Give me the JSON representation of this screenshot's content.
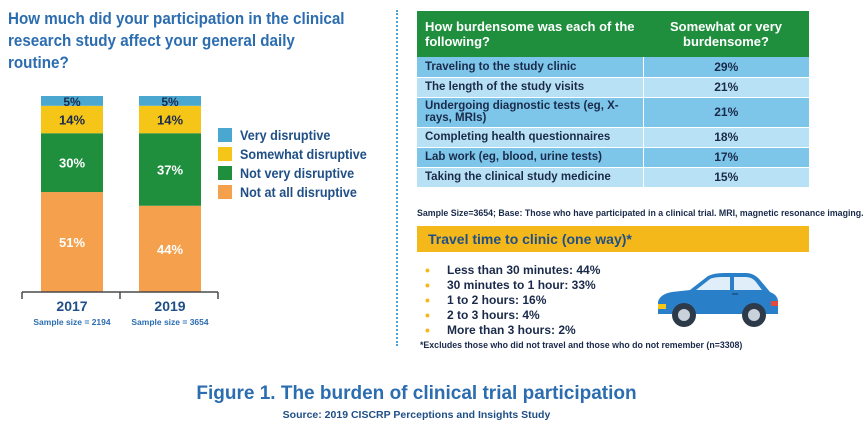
{
  "left_panel": {
    "question": "How much did your participation in the clinical research study affect your general daily routine?"
  },
  "chart_data": {
    "type": "bar",
    "stacked": true,
    "categories": [
      "2017",
      "2019"
    ],
    "sample_sizes": [
      "Sample size = 2194",
      "Sample size = 3654"
    ],
    "series": [
      {
        "name": "Not at all disruptive",
        "color": "#f4a04c",
        "values": [
          51,
          44
        ]
      },
      {
        "name": "Not very disruptive",
        "color": "#1f8f3e",
        "values": [
          30,
          37
        ]
      },
      {
        "name": "Somewhat disruptive",
        "color": "#f5c518",
        "values": [
          14,
          14
        ]
      },
      {
        "name": "Very disruptive",
        "color": "#4aa8d0",
        "values": [
          5,
          5
        ]
      }
    ],
    "value_suffix": "%",
    "ylim": [
      0,
      100
    ],
    "legend_order": [
      "Very disruptive",
      "Somewhat disruptive",
      "Not very disruptive",
      "Not at all disruptive"
    ],
    "legend_position": "right"
  },
  "burden_table": {
    "headers": [
      "How burdensome was each of the following?",
      "Somewhat or very burdensome?"
    ],
    "rows": [
      {
        "label": "Traveling to the study clinic",
        "value": "29%"
      },
      {
        "label": "The length of the study visits",
        "value": "21%"
      },
      {
        "label": "Undergoing diagnostic tests (eg, X-rays, MRIs)",
        "value": "21%"
      },
      {
        "label": "Completing health questionnaires",
        "value": "18%"
      },
      {
        "label": "Lab work (eg, blood, urine tests)",
        "value": "17%"
      },
      {
        "label": "Taking the clinical study medicine",
        "value": "15%"
      }
    ],
    "note": "Sample Size=3654; Base: Those who have participated in a clinical trial. MRI, magnetic resonance imaging."
  },
  "travel": {
    "title": "Travel time to clinic (one way)*",
    "items": [
      "Less than 30 minutes: 44%",
      "30 minutes to 1 hour: 33%",
      "1 to 2 hours: 16%",
      "2 to 3 hours: 4%",
      "More than 3 hours: 2%"
    ],
    "note": "*Excludes those who did not travel and those who do not remember (n=3308)",
    "icon": "car-icon"
  },
  "figure": {
    "number": "Figure 1.",
    "title": "The burden of clinical trial participation",
    "source": "Source: 2019 CISCRP Perceptions and Insights Study"
  },
  "colors": {
    "title_blue": "#2c6db0",
    "header_green": "#1f8f3e",
    "row_blue": "#7dc6ea",
    "row_light_blue": "#b9e1f5",
    "travel_yellow": "#f5b81a",
    "car_blue": "#2a7fc9"
  }
}
